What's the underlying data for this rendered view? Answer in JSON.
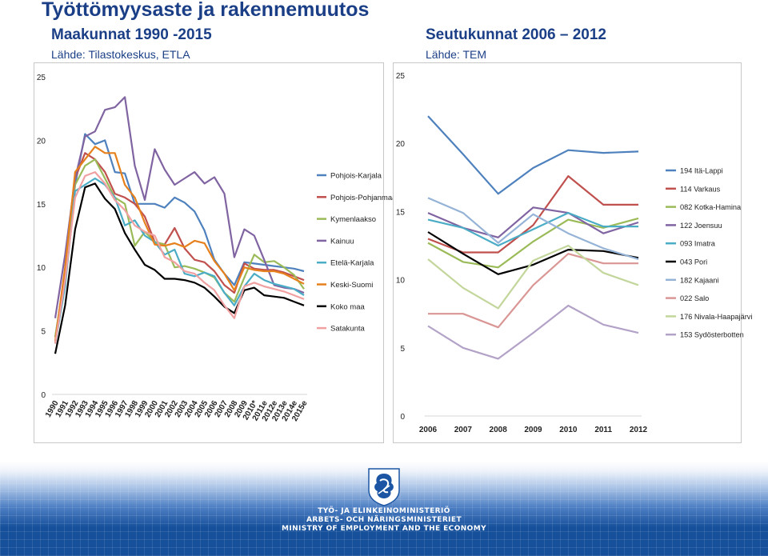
{
  "header": {
    "title": "Työttömyysaste ja rakennemuutos",
    "subtitle_left": "Maakunnat  1990 -2015",
    "subtitle_right": "Seutukunnat 2006 – 2012",
    "source_left": "Lähde: Tilastokeskus, ETLA",
    "source_right": "Lähde: TEM"
  },
  "chart_data": [
    {
      "type": "line",
      "title": "",
      "xlabel": "",
      "ylabel": "",
      "ylim": [
        0,
        25
      ],
      "yticks": [
        0,
        5,
        10,
        15,
        20,
        25
      ],
      "grid": false,
      "legend_position": "right",
      "x": [
        "1990",
        "1991",
        "1992",
        "1993",
        "1994",
        "1995",
        "1996",
        "1997",
        "1998",
        "1999",
        "2000",
        "2001",
        "2002",
        "2003",
        "2004",
        "2005",
        "2006",
        "2007",
        "2008",
        "2009",
        "2010*",
        "2011e",
        "2012e",
        "2013e",
        "2014e",
        "2015e"
      ],
      "series": [
        {
          "name": "Pohjois-Karjala",
          "color": "#4e81bd",
          "values": [
            4.5,
            9.5,
            16.5,
            20.5,
            19.7,
            20.0,
            17.5,
            17.4,
            15.0,
            15.0,
            15.0,
            14.7,
            15.5,
            15.1,
            14.4,
            12.9,
            10.6,
            9.5,
            8.6,
            10.4,
            10.3,
            10.2,
            10.1,
            10.0,
            9.9,
            9.7
          ]
        },
        {
          "name": "Pohjois-Pohjanmaa",
          "color": "#c0504d",
          "values": [
            4.0,
            9.5,
            17.0,
            19.0,
            18.5,
            17.5,
            15.8,
            15.5,
            15.0,
            14.0,
            12.0,
            11.8,
            13.1,
            11.5,
            10.6,
            10.4,
            9.7,
            8.6,
            8.0,
            10.3,
            9.9,
            9.8,
            9.8,
            9.6,
            9.3,
            9.0
          ]
        },
        {
          "name": "Kymenlaakso",
          "color": "#9bbb59",
          "values": [
            4.5,
            9.5,
            16.5,
            18.0,
            18.5,
            17.0,
            15.5,
            15.0,
            11.7,
            12.8,
            12.0,
            11.8,
            10.0,
            10.1,
            9.9,
            9.6,
            9.2,
            8.0,
            7.3,
            9.2,
            11.0,
            10.4,
            10.5,
            10.0,
            9.4,
            8.3
          ]
        },
        {
          "name": "Kainuu",
          "color": "#8064a2",
          "values": [
            6.0,
            11.0,
            17.0,
            20.3,
            20.7,
            22.4,
            22.6,
            23.4,
            18.0,
            15.3,
            19.3,
            17.7,
            16.5,
            17.0,
            17.5,
            16.6,
            17.1,
            15.8,
            10.8,
            13.0,
            12.5,
            10.6,
            8.6,
            8.4,
            8.3,
            8.0
          ]
        },
        {
          "name": "Etelä-Karjala",
          "color": "#4bacc6",
          "values": [
            4.0,
            8.5,
            16.0,
            16.5,
            17.0,
            16.5,
            15.5,
            13.3,
            13.7,
            12.5,
            12.0,
            11.0,
            11.4,
            9.5,
            9.3,
            9.6,
            9.3,
            8.0,
            7.0,
            8.5,
            9.5,
            9.0,
            8.7,
            8.5,
            8.3,
            7.8
          ]
        },
        {
          "name": "Keski-Suomi",
          "color": "#e5801c",
          "values": [
            4.2,
            10.0,
            17.5,
            18.5,
            19.5,
            19.0,
            19.0,
            16.5,
            15.5,
            13.5,
            11.8,
            11.7,
            11.9,
            11.6,
            12.1,
            11.9,
            10.5,
            9.5,
            8.2,
            10.0,
            9.8,
            9.7,
            9.7,
            9.5,
            9.1,
            8.7
          ]
        },
        {
          "name": "Koko maa",
          "color": "#000000",
          "values": [
            3.2,
            7.0,
            13.0,
            16.3,
            16.6,
            15.4,
            14.6,
            12.7,
            11.4,
            10.2,
            9.8,
            9.1,
            9.1,
            9.0,
            8.8,
            8.4,
            7.7,
            6.9,
            6.4,
            8.2,
            8.4,
            7.8,
            7.7,
            7.6,
            7.3,
            7.0
          ]
        },
        {
          "name": "Satakunta",
          "color": "#f0a0a0",
          "values": [
            4.0,
            9.0,
            15.5,
            17.2,
            17.5,
            16.6,
            15.3,
            14.5,
            13.3,
            12.8,
            12.5,
            10.8,
            10.4,
            9.7,
            9.5,
            8.8,
            8.2,
            7.0,
            6.0,
            8.5,
            8.8,
            8.5,
            8.3,
            8.1,
            7.8,
            7.5
          ]
        }
      ]
    },
    {
      "type": "line",
      "title": "",
      "xlabel": "",
      "ylabel": "",
      "ylim": [
        0,
        25
      ],
      "yticks": [
        0,
        5,
        10,
        15,
        20,
        25
      ],
      "grid": false,
      "legend_position": "right",
      "x": [
        "2006",
        "2007",
        "2008",
        "2009",
        "2010",
        "2011",
        "2012"
      ],
      "series": [
        {
          "name": "194 Itä-Lappi",
          "color": "#4e81bd",
          "values": [
            22.0,
            19.2,
            16.3,
            18.2,
            19.5,
            19.3,
            19.4
          ]
        },
        {
          "name": "114 Varkaus",
          "color": "#c0504d",
          "values": [
            13.0,
            12.0,
            12.0,
            14.0,
            17.6,
            15.5,
            15.5
          ]
        },
        {
          "name": "082 Kotka-Hamina",
          "color": "#9bbb59",
          "values": [
            12.7,
            11.3,
            10.9,
            12.8,
            14.4,
            13.8,
            14.5
          ]
        },
        {
          "name": "122 Joensuu",
          "color": "#8064a2",
          "values": [
            14.9,
            13.8,
            13.1,
            15.3,
            14.9,
            13.4,
            14.2
          ]
        },
        {
          "name": "093 Imatra",
          "color": "#4bacc6",
          "values": [
            14.4,
            13.8,
            12.5,
            13.7,
            14.9,
            13.9,
            13.9
          ]
        },
        {
          "name": "043 Pori",
          "color": "#000000",
          "values": [
            13.5,
            11.9,
            10.4,
            11.1,
            12.2,
            12.1,
            11.6
          ]
        },
        {
          "name": "182 Kajaani",
          "color": "#95b3d7",
          "values": [
            16.0,
            14.9,
            12.7,
            14.8,
            13.4,
            12.3,
            11.5
          ]
        },
        {
          "name": "022 Salo",
          "color": "#d99694",
          "values": [
            7.5,
            7.5,
            6.5,
            9.6,
            11.9,
            11.2,
            11.2
          ]
        },
        {
          "name": "176 Nivala-Haapajärvi",
          "color": "#c3d69b",
          "values": [
            11.5,
            9.4,
            7.9,
            11.4,
            12.5,
            10.5,
            9.6
          ]
        },
        {
          "name": "153 Sydösterbotten",
          "color": "#b3a2c7",
          "values": [
            6.6,
            5.0,
            4.2,
            6.1,
            8.1,
            6.7,
            6.1
          ]
        }
      ]
    }
  ],
  "footer": {
    "ministry_fi": "TYÖ- JA ELINKEINOMINISTERIÖ",
    "ministry_sv": "ARBETS- OCH NÄRINGSMINISTERIET",
    "ministry_en": "MINISTRY OF EMPLOYMENT AND THE ECONOMY",
    "logo_icon": "finnish-lion-crest-icon"
  }
}
